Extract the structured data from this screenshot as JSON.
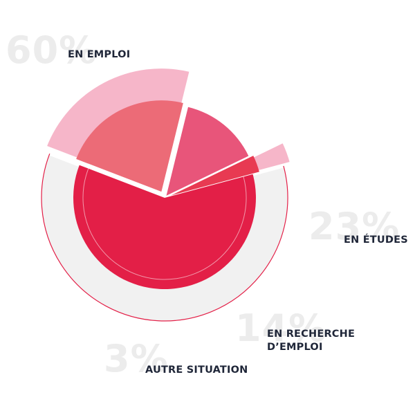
{
  "chart_data": {
    "type": "pie",
    "title": "",
    "slices": [
      {
        "pct_label": "60%",
        "label_lines": [
          "EN EMPLOI"
        ],
        "value": 60,
        "colors": {
          "inner": "#e31f47",
          "outer": "#f1f1f1"
        }
      },
      {
        "pct_label": "23%",
        "label_lines": [
          "EN ÉTUDES"
        ],
        "value": 23,
        "colors": {
          "inner": "#ec6b77",
          "outer": "#f6b6c9"
        }
      },
      {
        "pct_label": "14%",
        "label_lines": [
          "EN RECHERCHE",
          "D’EMPLOI"
        ],
        "value": 14,
        "colors": {
          "inner": "#e8557a",
          "outer": "#ffffff"
        }
      },
      {
        "pct_label": "3%",
        "label_lines": [
          "AUTRE SITUATION"
        ],
        "value": 3,
        "colors": {
          "inner": "#e83a52",
          "outer": "#f6b6c9"
        }
      }
    ]
  }
}
